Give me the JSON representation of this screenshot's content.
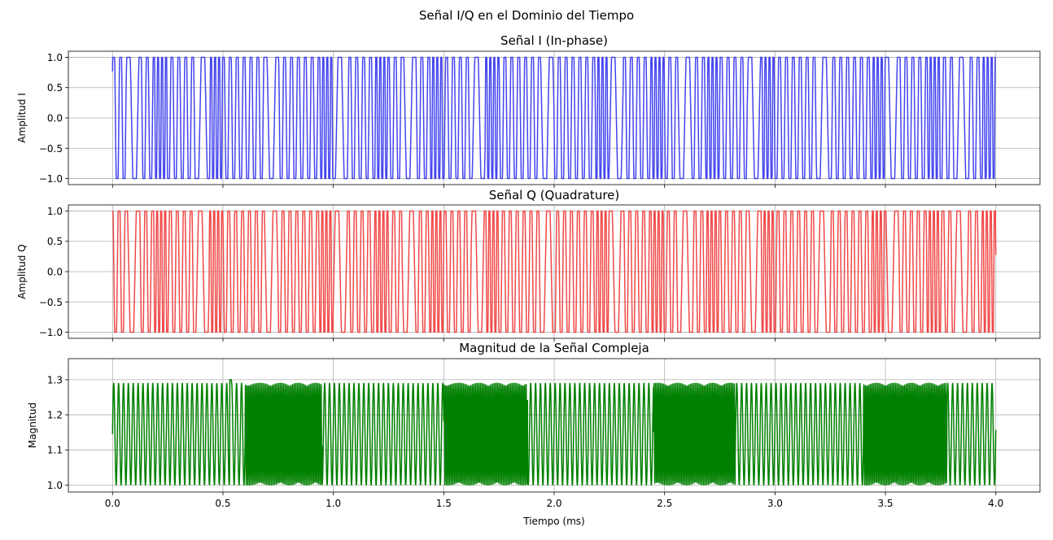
{
  "figure": {
    "suptitle": "Señal I/Q en el Dominio del Tiempo"
  },
  "chart_data": [
    {
      "type": "line",
      "title": "Señal I (In-phase)",
      "xlabel": "",
      "ylabel": "Amplitud I",
      "xlim": [
        -0.2,
        4.2
      ],
      "ylim": [
        -1.1,
        1.1
      ],
      "xticks": [
        0.0,
        0.5,
        1.0,
        1.5,
        2.0,
        2.5,
        3.0,
        3.5,
        4.0
      ],
      "yticks": [
        -1.0,
        -0.5,
        0.0,
        0.5,
        1.0
      ],
      "ytick_labels": [
        "−1.0",
        "−0.5",
        "0.0",
        "0.5",
        "1.0"
      ],
      "grid": true,
      "color": "#4444ee",
      "series": [
        {
          "x_range": [
            0,
            4.0
          ],
          "y_range": [
            -1.0,
            1.0
          ]
        }
      ]
    },
    {
      "type": "line",
      "title": "Señal Q (Quadrature)",
      "xlabel": "",
      "ylabel": "Amplitud Q",
      "xlim": [
        -0.2,
        4.2
      ],
      "ylim": [
        -1.1,
        1.1
      ],
      "xticks": [
        0.0,
        0.5,
        1.0,
        1.5,
        2.0,
        2.5,
        3.0,
        3.5,
        4.0
      ],
      "yticks": [
        -1.0,
        -0.5,
        0.0,
        0.5,
        1.0
      ],
      "ytick_labels": [
        "−1.0",
        "−0.5",
        "0.0",
        "0.5",
        "1.0"
      ],
      "grid": true,
      "color": "#f04848",
      "series": [
        {
          "x_range": [
            0,
            4.0
          ],
          "y_range": [
            -1.0,
            1.0
          ]
        }
      ]
    },
    {
      "type": "line",
      "title": "Magnitud de la Señal Compleja",
      "xlabel": "Tiempo (ms)",
      "ylabel": "Magnitud",
      "xlim": [
        -0.2,
        4.2
      ],
      "ylim": [
        0.98,
        1.36
      ],
      "xticks": [
        0.0,
        0.5,
        1.0,
        1.5,
        2.0,
        2.5,
        3.0,
        3.5,
        4.0
      ],
      "xtick_labels": [
        "0.0",
        "0.5",
        "1.0",
        "1.5",
        "2.0",
        "2.5",
        "3.0",
        "3.5",
        "4.0"
      ],
      "yticks": [
        1.0,
        1.1,
        1.2,
        1.3
      ],
      "ytick_labels": [
        "1.0",
        "1.1",
        "1.2",
        "1.3"
      ],
      "grid": true,
      "color": "#008000",
      "series": [
        {
          "x_range": [
            0,
            4.0
          ],
          "y_range": [
            1.0,
            1.34
          ]
        }
      ]
    }
  ]
}
